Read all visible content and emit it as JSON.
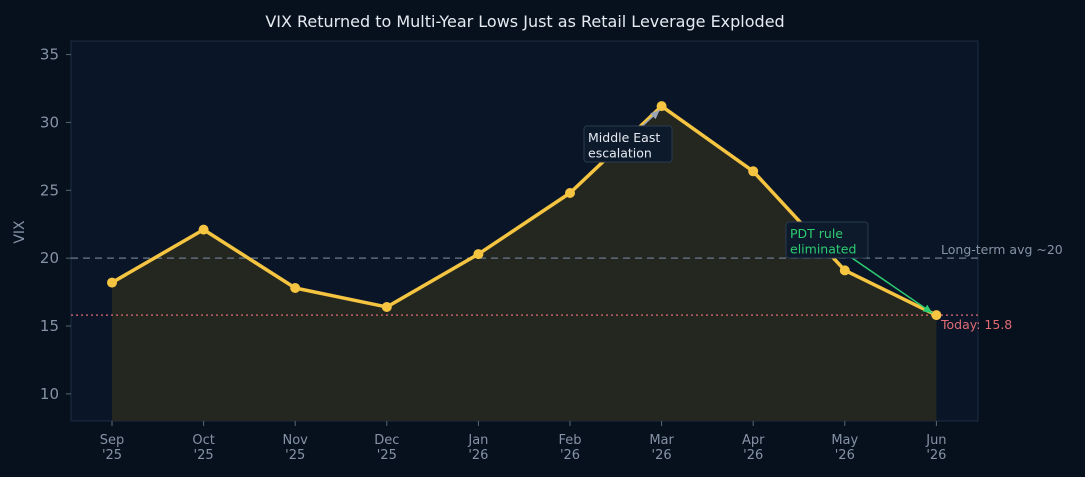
{
  "chart_data": {
    "type": "line",
    "title": "VIX Returned to Multi-Year Lows Just as Retail Leverage Exploded",
    "ylabel": "VIX",
    "xlabel": "",
    "categories": [
      [
        "Sep",
        "'25"
      ],
      [
        "Oct",
        "'25"
      ],
      [
        "Nov",
        "'25"
      ],
      [
        "Dec",
        "'25"
      ],
      [
        "Jan",
        "'26"
      ],
      [
        "Feb",
        "'26"
      ],
      [
        "Mar",
        "'26"
      ],
      [
        "Apr",
        "'26"
      ],
      [
        "May",
        "'26"
      ],
      [
        "Jun",
        "'26"
      ]
    ],
    "series": [
      {
        "values": [
          18.2,
          22.1,
          17.8,
          16.4,
          20.3,
          24.8,
          31.2,
          26.4,
          19.1,
          15.8
        ],
        "color": "#f5c542",
        "fill": "#26281f"
      }
    ],
    "ylim": [
      8,
      36
    ],
    "yticks": [
      10,
      15,
      20,
      25,
      30,
      35
    ],
    "grid": false,
    "reference_lines": [
      {
        "y": 20,
        "label": "Long-term avg ~20",
        "color": "#6b7a8d",
        "style": "dashed"
      },
      {
        "y": 15.8,
        "label": "Today: 15.8",
        "color": "#e06c75",
        "style": "dotted"
      }
    ],
    "annotations": [
      {
        "text": [
          "Middle East",
          "escalation"
        ],
        "target_index": 6,
        "color": "#e6ebf2"
      },
      {
        "text": [
          "PDT rule",
          "eliminated"
        ],
        "target_index": 9,
        "color": "#2ecc71"
      }
    ],
    "colors": {
      "background": "#07101d",
      "plot_background": "#0a1628",
      "axis": "#1e2d42",
      "tick_text": "#8593a6",
      "title_text": "#e6ebf2",
      "annotation_box": "#0d1a2b",
      "annotation_border": "#2a3a50"
    }
  }
}
